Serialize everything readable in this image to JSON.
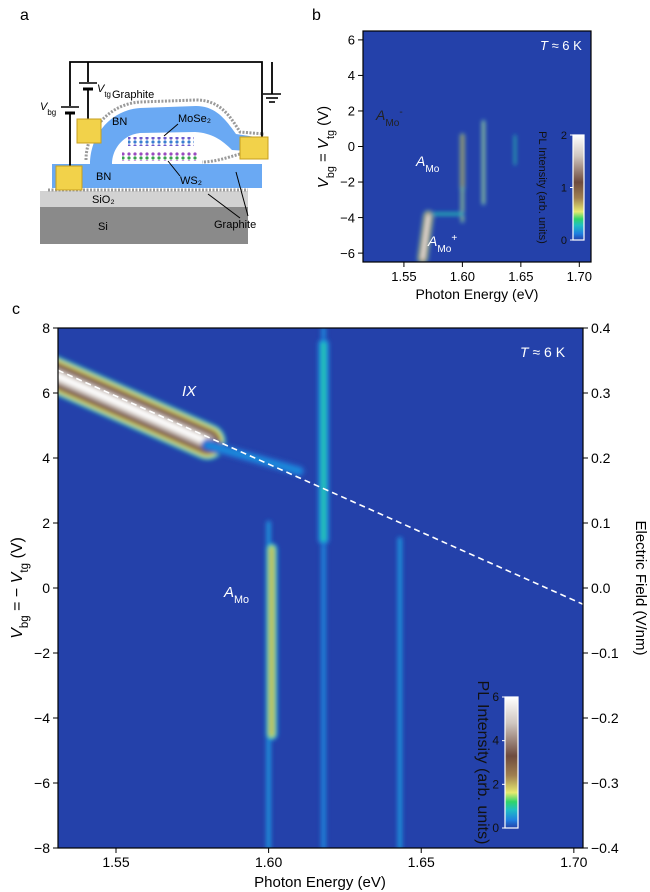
{
  "panel_labels": [
    "a",
    "b",
    "c"
  ],
  "diagram": {
    "graphite_top": "Graphite",
    "bn_top": "BN",
    "mose2": "MoSe₂",
    "bn_bottom": "BN",
    "ws2": "WS₂",
    "sio2": "SiO₂",
    "si": "Si",
    "graphite_bottom": "Graphite",
    "v_bg": [
      {
        "text": "V",
        "style": "italic"
      },
      {
        "text": "bg",
        "style": "sub"
      }
    ],
    "v_tg": [
      {
        "text": "V",
        "style": "italic"
      },
      {
        "text": "tg",
        "style": "sub"
      }
    ]
  },
  "chart_data": [
    {
      "type": "heatmap",
      "background_color": "#2441aa",
      "xlabel": "Photon Energy (eV)",
      "ylabel": [
        {
          "text": "V",
          "style": "italic"
        },
        {
          "text": "bg",
          "style": "sub"
        },
        {
          "text": " = "
        },
        {
          "text": "V",
          "style": "italic"
        },
        {
          "text": "tg",
          "style": "sub"
        },
        {
          "text": " (V)"
        }
      ],
      "xlim": [
        1.515,
        1.71
      ],
      "xticks": [
        1.55,
        {
          "value": 1.6,
          "label": "1.60"
        },
        1.65,
        {
          "value": 1.7,
          "label": "1.70"
        }
      ],
      "ylim": [
        -6.5,
        6.5
      ],
      "yticks": [
        {
          "value": -6,
          "label": "−6"
        },
        {
          "value": -4,
          "label": "−4"
        },
        {
          "value": -2,
          "label": "−2"
        },
        0,
        2,
        4,
        6
      ],
      "temperature": [
        {
          "text": "T",
          "style": "italic"
        },
        {
          "text": " ≈ 6 K"
        }
      ],
      "annotations": [
        [
          {
            "text": "A",
            "style": "italic"
          },
          {
            "text": "Mo",
            "style": "sub"
          },
          {
            "text": "-",
            "style": "sup"
          }
        ],
        [
          {
            "text": "A",
            "style": "italic"
          },
          {
            "text": "Mo",
            "style": "sub"
          }
        ],
        [
          {
            "text": "A",
            "style": "italic"
          },
          {
            "text": "Mo",
            "style": "sub"
          },
          {
            "text": "+",
            "style": "sup"
          }
        ]
      ],
      "colorbar": {
        "label": "PL Intensity (arb. units)",
        "clim": [
          0,
          2
        ],
        "ticks": [
          0,
          1,
          2
        ]
      },
      "streaks": [
        {
          "x": [
            1.566,
            1.571
          ],
          "y": [
            -6.3,
            -3.9
          ],
          "width": 0.009,
          "peak": 2
        },
        {
          "x": [
            1.6,
            1.6
          ],
          "y": [
            -2.4,
            0.6
          ],
          "width": 0.004,
          "peak": 1.3
        },
        {
          "x": [
            1.6,
            1.6
          ],
          "y": [
            -4.2,
            -2.4
          ],
          "width": 0.003,
          "peak": 0.7
        },
        {
          "x": [
            1.618,
            1.618
          ],
          "y": [
            -3.2,
            1.4
          ],
          "width": 0.003,
          "peak": 0.6
        },
        {
          "x": [
            1.645,
            1.645
          ],
          "y": [
            -1.0,
            0.6
          ],
          "width": 0.002,
          "peak": 0.4
        },
        {
          "x": [
            1.575,
            1.6
          ],
          "y": [
            -3.8,
            -3.8
          ],
          "width": 0.003,
          "peak": 0.4
        }
      ]
    },
    {
      "type": "heatmap",
      "background_color": "#2441aa",
      "xlabel": "Photon Energy (eV)",
      "ylabel": [
        {
          "text": "V",
          "style": "italic"
        },
        {
          "text": "bg",
          "style": "sub"
        },
        {
          "text": " = − "
        },
        {
          "text": "V",
          "style": "italic"
        },
        {
          "text": "tg",
          "style": "sub"
        },
        {
          "text": " (V)"
        }
      ],
      "y2label": "Electric Field (V/nm)",
      "xlim": [
        1.531,
        1.703
      ],
      "xticks": [
        1.55,
        {
          "value": 1.6,
          "label": "1.60"
        },
        1.65,
        {
          "value": 1.7,
          "label": "1.70"
        }
      ],
      "ylim": [
        -8,
        8
      ],
      "yticks": [
        {
          "value": -8,
          "label": "−8"
        },
        {
          "value": -6,
          "label": "−6"
        },
        {
          "value": -4,
          "label": "−4"
        },
        {
          "value": -2,
          "label": "−2"
        },
        0,
        2,
        4,
        6,
        8
      ],
      "y2lim": [
        -0.4,
        0.4
      ],
      "y2ticks": [
        {
          "value": -0.4,
          "label": "−0.4"
        },
        {
          "value": -0.3,
          "label": "−0.3"
        },
        {
          "value": -0.2,
          "label": "−0.2"
        },
        {
          "value": -0.1,
          "label": "−0.1"
        },
        {
          "value": 0,
          "label": "0.0"
        },
        0.1,
        0.2,
        0.3,
        0.4
      ],
      "temperature": [
        {
          "text": "T",
          "style": "italic"
        },
        {
          "text": " ≈ 6 K"
        }
      ],
      "annotations": [
        [
          {
            "text": "IX",
            "style": "italic"
          }
        ],
        [
          {
            "text": "A",
            "style": "italic"
          },
          {
            "text": "Mo",
            "style": "sub"
          }
        ]
      ],
      "colorbar": {
        "label": "PL Intensity (arb. units)",
        "clim": [
          0,
          6
        ],
        "ticks": [
          0,
          2,
          4,
          6
        ]
      },
      "fit_line": {
        "x": [
          1.531,
          1.703
        ],
        "y": [
          6.7,
          -0.5
        ]
      },
      "streaks": [
        {
          "x": [
            1.529,
            1.58
          ],
          "y": [
            6.6,
            4.5
          ],
          "width": 0.012,
          "peak": 6
        },
        {
          "x": [
            1.58,
            1.61
          ],
          "y": [
            4.4,
            3.6
          ],
          "width": 0.004,
          "peak": 0.5
        },
        {
          "x": [
            1.6,
            1.6
          ],
          "y": [
            -8,
            2
          ],
          "width": 0.002,
          "peak": 0.6
        },
        {
          "x": [
            1.601,
            1.601
          ],
          "y": [
            -4.5,
            1.2
          ],
          "width": 0.004,
          "peak": 2.2
        },
        {
          "x": [
            1.618,
            1.618
          ],
          "y": [
            -8,
            8
          ],
          "width": 0.002,
          "peak": 0.5
        },
        {
          "x": [
            1.618,
            1.618
          ],
          "y": [
            1.5,
            7.5
          ],
          "width": 0.004,
          "peak": 1
        },
        {
          "x": [
            1.643,
            1.643
          ],
          "y": [
            -8,
            1.5
          ],
          "width": 0.002,
          "peak": 0.6
        }
      ]
    }
  ]
}
